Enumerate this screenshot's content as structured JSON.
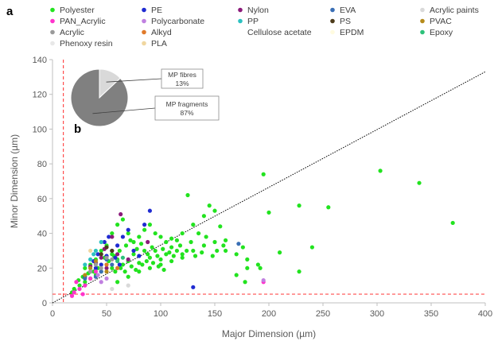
{
  "chart_data": {
    "type": "scatter",
    "panel_labels": {
      "main": "a",
      "inset": "b"
    },
    "xlabel": "Major Dimension (µm)",
    "ylabel": "Minor Dimension (µm)",
    "xlim": [
      0,
      400
    ],
    "ylim": [
      0,
      140
    ],
    "xticks": [
      0,
      50,
      100,
      150,
      200,
      250,
      300,
      350,
      400
    ],
    "yticks": [
      0,
      20,
      40,
      60,
      80,
      100,
      120,
      140
    ],
    "grid": false,
    "legend_position": "top",
    "reference_lines": [
      {
        "kind": "vertical-dashed",
        "x": 10,
        "color": "#ff4d4d"
      },
      {
        "kind": "horizontal-dashed",
        "y": 5,
        "color": "#ff4d4d"
      },
      {
        "kind": "diagonal-dotted",
        "from": [
          0,
          0
        ],
        "to": [
          400,
          133
        ],
        "color": "#000000"
      }
    ],
    "series": [
      {
        "name": "Polyester",
        "color": "#22e31f",
        "points": [
          [
            370,
            46
          ],
          [
            339,
            69
          ],
          [
            303,
            76
          ],
          [
            255,
            55
          ],
          [
            228,
            56
          ],
          [
            228,
            18
          ],
          [
            240,
            32
          ],
          [
            210,
            29
          ],
          [
            200,
            52
          ],
          [
            195,
            74
          ],
          [
            192,
            20
          ],
          [
            180,
            20
          ],
          [
            176,
            32
          ],
          [
            170,
            16
          ],
          [
            178,
            12
          ],
          [
            160,
            36
          ],
          [
            155,
            44
          ],
          [
            150,
            53
          ],
          [
            145,
            56
          ],
          [
            140,
            50
          ],
          [
            135,
            40
          ],
          [
            130,
            45
          ],
          [
            125,
            62
          ],
          [
            120,
            40
          ],
          [
            115,
            30
          ],
          [
            110,
            37
          ],
          [
            105,
            28
          ],
          [
            100,
            25
          ],
          [
            95,
            30
          ],
          [
            90,
            26
          ],
          [
            85,
            30
          ],
          [
            80,
            23
          ],
          [
            75,
            28
          ],
          [
            70,
            24
          ],
          [
            65,
            22
          ],
          [
            60,
            25
          ],
          [
            55,
            20
          ],
          [
            50,
            22
          ],
          [
            45,
            18
          ],
          [
            40,
            16
          ],
          [
            35,
            14
          ],
          [
            30,
            12
          ],
          [
            25,
            10
          ],
          [
            20,
            8
          ],
          [
            18,
            6
          ],
          [
            60,
            45
          ],
          [
            55,
            40
          ],
          [
            65,
            48
          ],
          [
            70,
            40
          ],
          [
            75,
            35
          ],
          [
            80,
            38
          ],
          [
            85,
            42
          ],
          [
            90,
            45
          ],
          [
            95,
            40
          ],
          [
            100,
            38
          ],
          [
            105,
            35
          ],
          [
            110,
            32
          ],
          [
            115,
            36
          ],
          [
            120,
            28
          ],
          [
            60,
            12
          ],
          [
            70,
            15
          ],
          [
            80,
            18
          ],
          [
            90,
            20
          ],
          [
            100,
            22
          ],
          [
            110,
            24
          ],
          [
            120,
            26
          ],
          [
            130,
            30
          ],
          [
            140,
            33
          ],
          [
            150,
            35
          ],
          [
            160,
            30
          ],
          [
            170,
            28
          ],
          [
            180,
            25
          ],
          [
            190,
            22
          ],
          [
            45,
            30
          ],
          [
            50,
            33
          ],
          [
            55,
            28
          ],
          [
            40,
            25
          ],
          [
            35,
            22
          ],
          [
            30,
            20
          ],
          [
            62,
            30
          ],
          [
            68,
            33
          ],
          [
            72,
            36
          ],
          [
            78,
            31
          ],
          [
            82,
            34
          ],
          [
            88,
            28
          ],
          [
            92,
            32
          ],
          [
            97,
            27
          ],
          [
            102,
            31
          ],
          [
            108,
            29
          ],
          [
            112,
            27
          ],
          [
            118,
            33
          ],
          [
            124,
            30
          ],
          [
            128,
            35
          ],
          [
            132,
            27
          ],
          [
            138,
            29
          ],
          [
            142,
            38
          ],
          [
            148,
            27
          ],
          [
            152,
            30
          ],
          [
            158,
            33
          ],
          [
            58,
            18
          ],
          [
            63,
            20
          ],
          [
            67,
            18
          ],
          [
            73,
            21
          ],
          [
            77,
            19
          ],
          [
            83,
            22
          ],
          [
            87,
            24
          ],
          [
            93,
            23
          ],
          [
            98,
            21
          ],
          [
            103,
            19
          ],
          [
            48,
            26
          ],
          [
            52,
            24
          ],
          [
            57,
            27
          ],
          [
            42,
            20
          ],
          [
            38,
            18
          ],
          [
            33,
            17
          ],
          [
            28,
            15
          ],
          [
            24,
            13
          ]
        ]
      },
      {
        "name": "PE",
        "color": "#1f2bd1",
        "points": [
          [
            130,
            9
          ],
          [
            90,
            53
          ],
          [
            85,
            45
          ],
          [
            70,
            42
          ],
          [
            65,
            38
          ],
          [
            55,
            30
          ],
          [
            50,
            27
          ],
          [
            45,
            22
          ],
          [
            40,
            20
          ],
          [
            35,
            18
          ],
          [
            30,
            15
          ],
          [
            60,
            33
          ],
          [
            75,
            30
          ],
          [
            80,
            27
          ],
          [
            48,
            35
          ],
          [
            42,
            28
          ],
          [
            38,
            24
          ],
          [
            52,
            38
          ],
          [
            58,
            26
          ],
          [
            62,
            22
          ]
        ]
      },
      {
        "name": "Nylon",
        "color": "#8b1a7a",
        "points": [
          [
            63,
            51
          ],
          [
            88,
            35
          ],
          [
            55,
            38
          ],
          [
            48,
            31
          ],
          [
            45,
            26
          ],
          [
            40,
            23
          ],
          [
            50,
            20
          ],
          [
            35,
            21
          ],
          [
            60,
            28
          ],
          [
            70,
            25
          ]
        ]
      },
      {
        "name": "EVA",
        "color": "#3a6fb5",
        "points": [
          [
            172,
            34
          ],
          [
            50,
            25
          ],
          [
            45,
            18
          ],
          [
            40,
            15
          ],
          [
            30,
            14
          ],
          [
            55,
            22
          ]
        ]
      },
      {
        "name": "Acrylic paints",
        "color": "#d9d9d9",
        "points": [
          [
            70,
            10
          ],
          [
            55,
            8
          ]
        ]
      },
      {
        "name": "PAN_Acrylic",
        "color": "#ff33cc",
        "points": [
          [
            20,
            6
          ],
          [
            25,
            8
          ],
          [
            30,
            10
          ],
          [
            22,
            12
          ],
          [
            35,
            14
          ],
          [
            28,
            5
          ],
          [
            18,
            4
          ],
          [
            40,
            18
          ],
          [
            195,
            12
          ]
        ]
      },
      {
        "name": "Polycarbonate",
        "color": "#c080e0",
        "points": [
          [
            195,
            13
          ],
          [
            45,
            12
          ],
          [
            50,
            14
          ],
          [
            42,
            16
          ]
        ]
      },
      {
        "name": "PP",
        "color": "#2cc1c1",
        "points": [
          [
            40,
            30
          ],
          [
            35,
            25
          ],
          [
            45,
            35
          ],
          [
            30,
            22
          ],
          [
            38,
            28
          ]
        ]
      },
      {
        "name": "PS",
        "color": "#4d3b1a",
        "points": [
          [
            55,
            30
          ],
          [
            45,
            28
          ],
          [
            50,
            32
          ]
        ]
      },
      {
        "name": "PVAC",
        "color": "#b58a1a",
        "points": [
          [
            35,
            20
          ],
          [
            40,
            24
          ],
          [
            50,
            18
          ],
          [
            30,
            16
          ]
        ]
      },
      {
        "name": "Acrylic",
        "color": "#9a9a9a",
        "points": [
          [
            45,
            20
          ],
          [
            40,
            22
          ],
          [
            35,
            18
          ],
          [
            50,
            26
          ],
          [
            55,
            25
          ]
        ]
      },
      {
        "name": "Alkyd",
        "color": "#e07a2a",
        "points": [
          [
            50,
            22
          ],
          [
            60,
            20
          ]
        ]
      },
      {
        "name": "Cellulose acetate",
        "color": "#ffffff",
        "points": []
      },
      {
        "name": "EPDM",
        "color": "#fffbe0",
        "points": []
      },
      {
        "name": "Epoxy",
        "color": "#2cc17a",
        "points": [
          [
            60,
            24
          ],
          [
            65,
            26
          ]
        ]
      },
      {
        "name": "Phenoxy resin",
        "color": "#e8e8e8",
        "points": []
      },
      {
        "name": "PLA",
        "color": "#f0d7a0",
        "points": [
          [
            35,
            30
          ]
        ]
      }
    ],
    "inset_pie": {
      "type": "pie",
      "slices": [
        {
          "label": "MP fibres",
          "value": 13,
          "value_label": "13%",
          "color": "#d9d9d9"
        },
        {
          "label": "MP fragments",
          "value": 87,
          "value_label": "87%",
          "color": "#808080"
        }
      ]
    }
  }
}
